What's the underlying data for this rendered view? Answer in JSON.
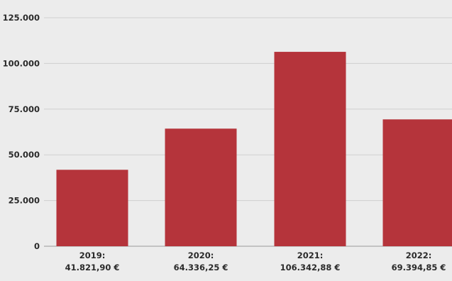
{
  "chart_data": {
    "type": "bar",
    "categories": [
      "2019",
      "2020",
      "2021",
      "2022"
    ],
    "values": [
      41821.9,
      64336.25,
      106342.88,
      69394.85
    ],
    "category_labels": [
      [
        "2019:",
        "41.821,90 €"
      ],
      [
        "2020:",
        "64.336,25 €"
      ],
      [
        "2021:",
        "106.342,88 €"
      ],
      [
        "2022:",
        "69.394,85 €"
      ]
    ],
    "y_ticks": [
      0,
      25000,
      50000,
      75000,
      100000,
      125000
    ],
    "y_tick_labels": [
      "0",
      "25.000",
      "50.000",
      "75.000",
      "100.000",
      "125.000"
    ],
    "ylim": [
      0,
      125000
    ],
    "grid": true,
    "legend": "none",
    "bar_color": "#b5343b",
    "background_color": "#ececec",
    "grid_color": "#cfcfcf"
  }
}
